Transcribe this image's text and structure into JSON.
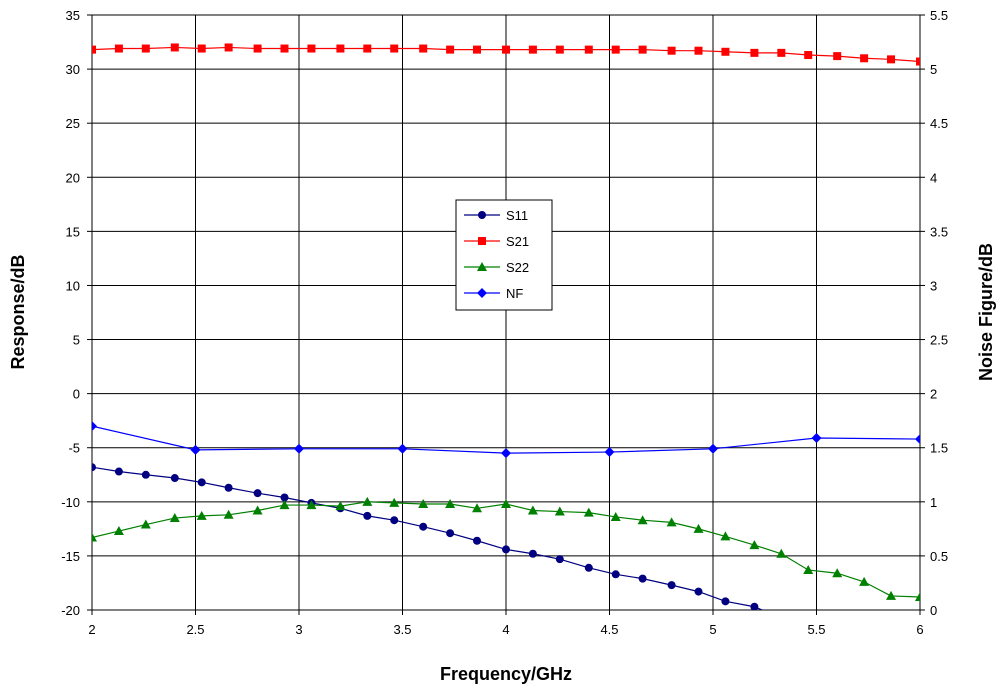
{
  "chart_data": {
    "type": "line",
    "xlabel": "Frequency/GHz",
    "ylabel": "Response/dB",
    "y2label": "Noise Figure/dB",
    "xlim": [
      2,
      6
    ],
    "ylim": [
      -20,
      35
    ],
    "y2lim": [
      0,
      5.5
    ],
    "x_ticks": [
      2,
      2.5,
      3,
      3.5,
      4,
      4.5,
      5,
      5.5,
      6
    ],
    "x_tick_labels": [
      "2",
      "2.5",
      "3",
      "3.5",
      "4",
      "4.5",
      "5",
      "5.5",
      "6"
    ],
    "y_ticks": [
      -20,
      -15,
      -10,
      -5,
      0,
      5,
      10,
      15,
      20,
      25,
      30,
      35
    ],
    "y_tick_labels": [
      "-20",
      "-15",
      "-10",
      "-5",
      "0",
      "5",
      "10",
      "15",
      "20",
      "25",
      "30",
      "35"
    ],
    "y2_ticks": [
      0,
      0.5,
      1,
      1.5,
      2,
      2.5,
      3,
      3.5,
      4,
      4.5,
      5,
      5.5
    ],
    "y2_tick_labels": [
      "0",
      "0.5",
      "1",
      "1.5",
      "2",
      "2.5",
      "3",
      "3.5",
      "4",
      "4.5",
      "5",
      "5.5"
    ],
    "grid": true,
    "legend_position": "center",
    "series": [
      {
        "name": "S11",
        "axis": "left",
        "color": "#000080",
        "marker": "circle",
        "x": [
          2.0,
          2.13,
          2.26,
          2.4,
          2.53,
          2.66,
          2.8,
          2.93,
          3.06,
          3.2,
          3.33,
          3.46,
          3.6,
          3.73,
          3.86,
          4.0,
          4.13,
          4.26,
          4.4,
          4.53,
          4.66,
          4.8,
          4.93,
          5.06,
          5.2,
          5.3
        ],
        "y": [
          -6.8,
          -7.2,
          -7.5,
          -7.8,
          -8.2,
          -8.7,
          -9.2,
          -9.6,
          -10.1,
          -10.6,
          -11.3,
          -11.7,
          -12.3,
          -12.9,
          -13.6,
          -14.4,
          -14.8,
          -15.3,
          -16.1,
          -16.7,
          -17.1,
          -17.7,
          -18.3,
          -19.2,
          -19.7,
          -20.5
        ]
      },
      {
        "name": "S21",
        "axis": "left",
        "color": "#ff0000",
        "marker": "square",
        "x": [
          2.0,
          2.13,
          2.26,
          2.4,
          2.53,
          2.66,
          2.8,
          2.93,
          3.06,
          3.2,
          3.33,
          3.46,
          3.6,
          3.73,
          3.86,
          4.0,
          4.13,
          4.26,
          4.4,
          4.53,
          4.66,
          4.8,
          4.93,
          5.06,
          5.2,
          5.33,
          5.46,
          5.6,
          5.73,
          5.86,
          6.0
        ],
        "y": [
          31.8,
          31.9,
          31.9,
          32.0,
          31.9,
          32.0,
          31.9,
          31.9,
          31.9,
          31.9,
          31.9,
          31.9,
          31.9,
          31.8,
          31.8,
          31.8,
          31.8,
          31.8,
          31.8,
          31.8,
          31.8,
          31.7,
          31.7,
          31.6,
          31.5,
          31.5,
          31.3,
          31.2,
          31.0,
          30.9,
          30.7
        ]
      },
      {
        "name": "S22",
        "axis": "left",
        "color": "#008000",
        "marker": "triangle",
        "x": [
          2.0,
          2.13,
          2.26,
          2.4,
          2.53,
          2.66,
          2.8,
          2.93,
          3.06,
          3.2,
          3.33,
          3.46,
          3.6,
          3.73,
          3.86,
          4.0,
          4.13,
          4.26,
          4.4,
          4.53,
          4.66,
          4.8,
          4.93,
          5.06,
          5.2,
          5.33,
          5.46,
          5.6,
          5.73,
          5.86,
          6.0
        ],
        "y": [
          -13.3,
          -12.7,
          -12.1,
          -11.5,
          -11.3,
          -11.2,
          -10.8,
          -10.3,
          -10.3,
          -10.4,
          -10.0,
          -10.1,
          -10.2,
          -10.2,
          -10.6,
          -10.2,
          -10.8,
          -10.9,
          -11.0,
          -11.4,
          -11.7,
          -11.9,
          -12.5,
          -13.2,
          -14.0,
          -14.8,
          -16.3,
          -16.6,
          -17.4,
          -18.7,
          -18.8
        ]
      },
      {
        "name": "NF",
        "axis": "right",
        "color": "#0000ff",
        "marker": "diamond",
        "x": [
          2.0,
          2.5,
          3.0,
          3.5,
          4.0,
          4.5,
          5.0,
          5.5,
          6.0
        ],
        "y": [
          1.7,
          1.48,
          1.49,
          1.49,
          1.45,
          1.46,
          1.49,
          1.59,
          1.58
        ]
      }
    ]
  }
}
